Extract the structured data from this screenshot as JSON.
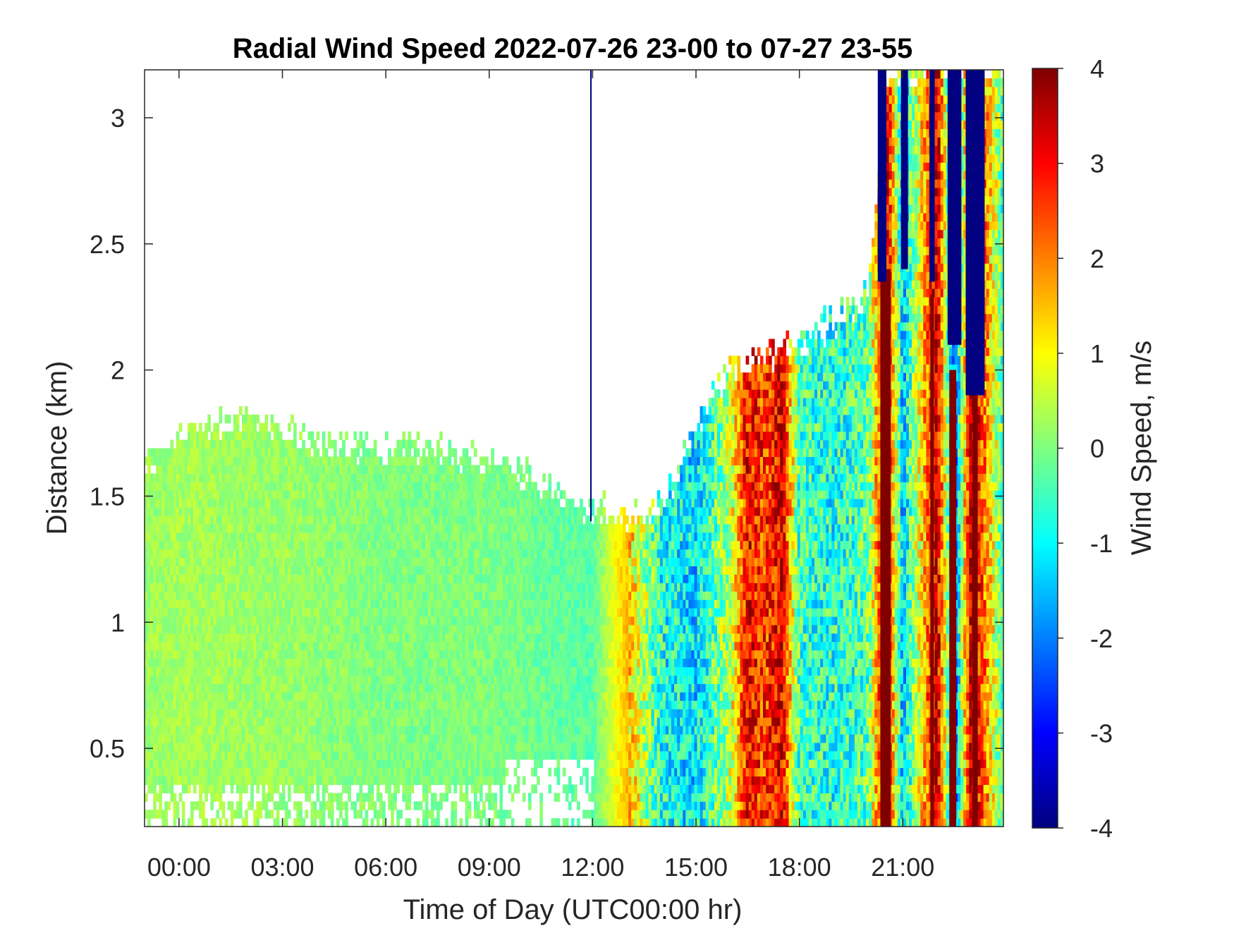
{
  "chart_data": {
    "type": "heatmap",
    "title": "Radial Wind Speed 2022-07-26 23-00 to 07-27 23-55",
    "xlabel": "Time of Day (UTC00:00 hr)",
    "ylabel": "Distance (km)",
    "colorbar_label": "Wind Speed, m/s",
    "colormap": "jet",
    "xlim": [
      -1,
      23.92
    ],
    "ylim": [
      0.19,
      3.19
    ],
    "x_ticks": [
      0,
      3,
      6,
      9,
      12,
      15,
      18,
      21
    ],
    "x_tick_labels": [
      "00:00",
      "03:00",
      "06:00",
      "09:00",
      "12:00",
      "15:00",
      "18:00",
      "21:00"
    ],
    "y_ticks": [
      0.5,
      1,
      1.5,
      2,
      2.5,
      3
    ],
    "y_tick_labels": [
      "0.5",
      "1",
      "1.5",
      "2",
      "2.5",
      "3"
    ],
    "clim": [
      -4,
      4
    ],
    "colorbar_ticks": [
      -4,
      -3,
      -2,
      -1,
      0,
      1,
      2,
      3,
      4
    ],
    "colorbar_tick_labels": [
      "-4",
      "-3",
      "-2",
      "-1",
      "0",
      "1",
      "2",
      "3",
      "4"
    ],
    "data_top_profile": {
      "description_hours": [
        -1,
        0,
        1.5,
        2,
        3,
        5,
        7,
        9,
        10.5,
        12,
        13.5,
        14.2,
        15,
        16,
        17,
        18,
        19,
        20,
        20.5,
        21,
        22,
        23,
        23.92
      ],
      "top_km": [
        1.65,
        1.72,
        1.8,
        1.85,
        1.75,
        1.7,
        1.7,
        1.65,
        1.55,
        1.45,
        1.4,
        1.5,
        1.8,
        2.0,
        2.05,
        2.1,
        2.2,
        2.3,
        3.19,
        3.19,
        3.19,
        3.19,
        3.19
      ]
    },
    "mean_speed_by_hour": {
      "hours": [
        -1,
        0,
        3,
        6,
        9,
        12,
        13,
        14,
        15,
        16,
        16.5,
        17,
        17.5,
        18,
        19,
        20,
        20.5,
        21,
        22,
        22.5,
        23,
        23.92
      ],
      "speed": [
        0.2,
        0.3,
        0.2,
        0.0,
        0.0,
        -0.3,
        1.5,
        -0.8,
        -1.2,
        0.5,
        3.0,
        2.5,
        3.2,
        -0.5,
        -0.8,
        -0.3,
        3.8,
        -1.5,
        3.5,
        -2.5,
        3.8,
        -0.5
      ]
    },
    "bands": [
      {
        "hour": 20.5,
        "width": 0.3,
        "speed": 4,
        "from_km": 0.19,
        "to_km": 2.4
      },
      {
        "hour": 21.85,
        "width": 0.1,
        "speed": 4,
        "from_km": 0.19,
        "to_km": 2.3
      },
      {
        "hour": 22.45,
        "width": 0.2,
        "speed": 4,
        "from_km": 0.19,
        "to_km": 2.0
      },
      {
        "hour": 23.1,
        "width": 0.15,
        "speed": 4,
        "from_km": 0.19,
        "to_km": 2.1
      },
      {
        "hour": 20.4,
        "width": 0.25,
        "speed": -4,
        "from_km": 2.35,
        "to_km": 3.19
      },
      {
        "hour": 21.05,
        "width": 0.2,
        "speed": -4,
        "from_km": 2.4,
        "to_km": 3.19
      },
      {
        "hour": 21.85,
        "width": 0.15,
        "speed": -4,
        "from_km": 2.35,
        "to_km": 3.19
      },
      {
        "hour": 22.5,
        "width": 0.4,
        "speed": -4,
        "from_km": 2.1,
        "to_km": 3.19
      },
      {
        "hour": 23.1,
        "width": 0.55,
        "speed": -4,
        "from_km": 1.9,
        "to_km": 3.19
      },
      {
        "hour": 11.95,
        "width": 0.04,
        "speed": -4,
        "from_km": 1.4,
        "to_km": 3.19
      }
    ]
  }
}
